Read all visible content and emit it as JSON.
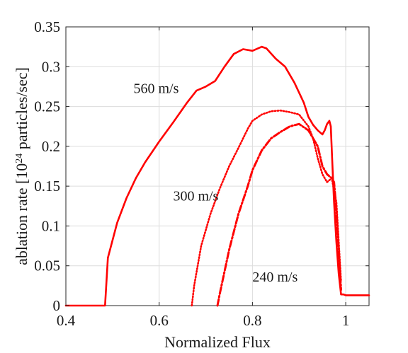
{
  "chart_data": {
    "type": "line",
    "xlabel": "Normalized Flux",
    "ylabel_main": "ablation rate [10",
    "ylabel_sup": "24",
    "ylabel_tail": " particles/sec]",
    "xlim": [
      0.4,
      1.05
    ],
    "ylim": [
      0,
      0.35
    ],
    "xticks": [
      "0.4",
      "0.6",
      "0.8",
      "1"
    ],
    "yticks": [
      "0",
      "0.05",
      "0.1",
      "0.15",
      "0.2",
      "0.25",
      "0.3",
      "0.35"
    ],
    "grid": true,
    "color": "#ff0000",
    "series": [
      {
        "style": "solid",
        "x": [
          0.4,
          0.484,
          0.49,
          0.51,
          0.53,
          0.55,
          0.57,
          0.6,
          0.63,
          0.66,
          0.68,
          0.7,
          0.72,
          0.74,
          0.76,
          0.78,
          0.8,
          0.82,
          0.83,
          0.85,
          0.87,
          0.89,
          0.91,
          0.92,
          0.93,
          0.94,
          0.95,
          0.955,
          0.96,
          0.965,
          0.968,
          0.972,
          0.975,
          0.98,
          0.985,
          0.99,
          0.995,
          1.0,
          1.05
        ],
        "y": [
          0,
          0,
          0.06,
          0.104,
          0.135,
          0.16,
          0.18,
          0.206,
          0.23,
          0.255,
          0.27,
          0.275,
          0.282,
          0.3,
          0.316,
          0.322,
          0.32,
          0.325,
          0.323,
          0.31,
          0.3,
          0.28,
          0.255,
          0.237,
          0.227,
          0.22,
          0.215,
          0.22,
          0.228,
          0.232,
          0.225,
          0.17,
          0.13,
          0.08,
          0.04,
          0.014,
          0.014,
          0.013,
          0.013
        ]
      },
      {
        "style": "dotted",
        "x": [
          0.67,
          0.675,
          0.69,
          0.71,
          0.73,
          0.75,
          0.77,
          0.79,
          0.8,
          0.82,
          0.84,
          0.86,
          0.88,
          0.9,
          0.92,
          0.93,
          0.94,
          0.95,
          0.96,
          0.97,
          0.98,
          0.985,
          0.99
        ],
        "y": [
          0,
          0.025,
          0.075,
          0.115,
          0.147,
          0.175,
          0.198,
          0.222,
          0.232,
          0.24,
          0.244,
          0.245,
          0.243,
          0.24,
          0.225,
          0.21,
          0.185,
          0.165,
          0.155,
          0.16,
          0.13,
          0.08,
          0.03
        ]
      },
      {
        "style": "dashdot",
        "x": [
          0.725,
          0.73,
          0.75,
          0.77,
          0.79,
          0.8,
          0.82,
          0.84,
          0.86,
          0.88,
          0.9,
          0.92,
          0.94,
          0.95,
          0.96,
          0.97,
          0.975,
          0.98,
          0.985,
          0.99
        ],
        "y": [
          0,
          0.015,
          0.07,
          0.115,
          0.15,
          0.17,
          0.195,
          0.21,
          0.218,
          0.225,
          0.228,
          0.22,
          0.2,
          0.175,
          0.165,
          0.16,
          0.155,
          0.12,
          0.07,
          0.02
        ]
      }
    ],
    "annotations": [
      {
        "text": "560 m/s",
        "x": 0.545,
        "y": 0.267
      },
      {
        "text": "300 m/s",
        "x": 0.63,
        "y": 0.132
      },
      {
        "text": "240 m/s",
        "x": 0.8,
        "y": 0.03
      }
    ]
  }
}
